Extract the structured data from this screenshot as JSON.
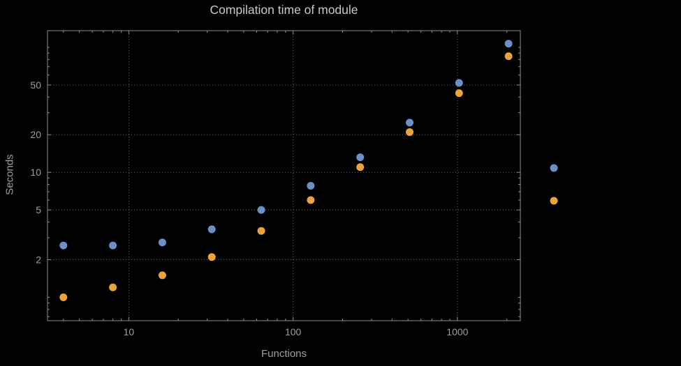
{
  "figure": {
    "background": "#000000",
    "frame_color": "#8d8d8d",
    "grid_color": "#6e6e6e",
    "tick_label_color": "#9f9f9f",
    "title_color": "#c9c9c9",
    "axis_label_color": "#9f9f9f"
  },
  "chart_data": {
    "type": "scatter",
    "title": "Compilation time of module",
    "xlabel": "Functions",
    "ylabel": "Seconds",
    "x_scale": "log",
    "y_scale": "log",
    "grid": "dotted lines at labeled ticks",
    "legend_position": "right of frame, markers only (no visible labels)",
    "xlim": [
      3.2,
      2416
    ],
    "ylim": [
      0.65,
      136
    ],
    "x_ticks": [
      10,
      100,
      1000
    ],
    "x_tick_labels": [
      "10",
      "100",
      "1000"
    ],
    "y_ticks": [
      2,
      5,
      10,
      20,
      50
    ],
    "y_tick_labels": [
      "2",
      "5",
      "10",
      "20",
      "50"
    ],
    "x": [
      4,
      8,
      16,
      32,
      64,
      128,
      256,
      512,
      1024,
      2048
    ],
    "series": [
      {
        "name": "series-blue",
        "color": "#6c8fc8",
        "values": [
          2.6,
          2.6,
          2.75,
          3.5,
          5.0,
          7.8,
          13.2,
          25,
          52,
          107
        ]
      },
      {
        "name": "series-orange",
        "color": "#eca33b",
        "values": [
          1.0,
          1.2,
          1.5,
          2.1,
          3.4,
          6.0,
          11.0,
          21,
          43,
          85
        ]
      }
    ],
    "legend_markers": [
      "series-blue",
      "series-orange"
    ],
    "marker": "filled circle",
    "marker_radius_px": 5.5
  }
}
